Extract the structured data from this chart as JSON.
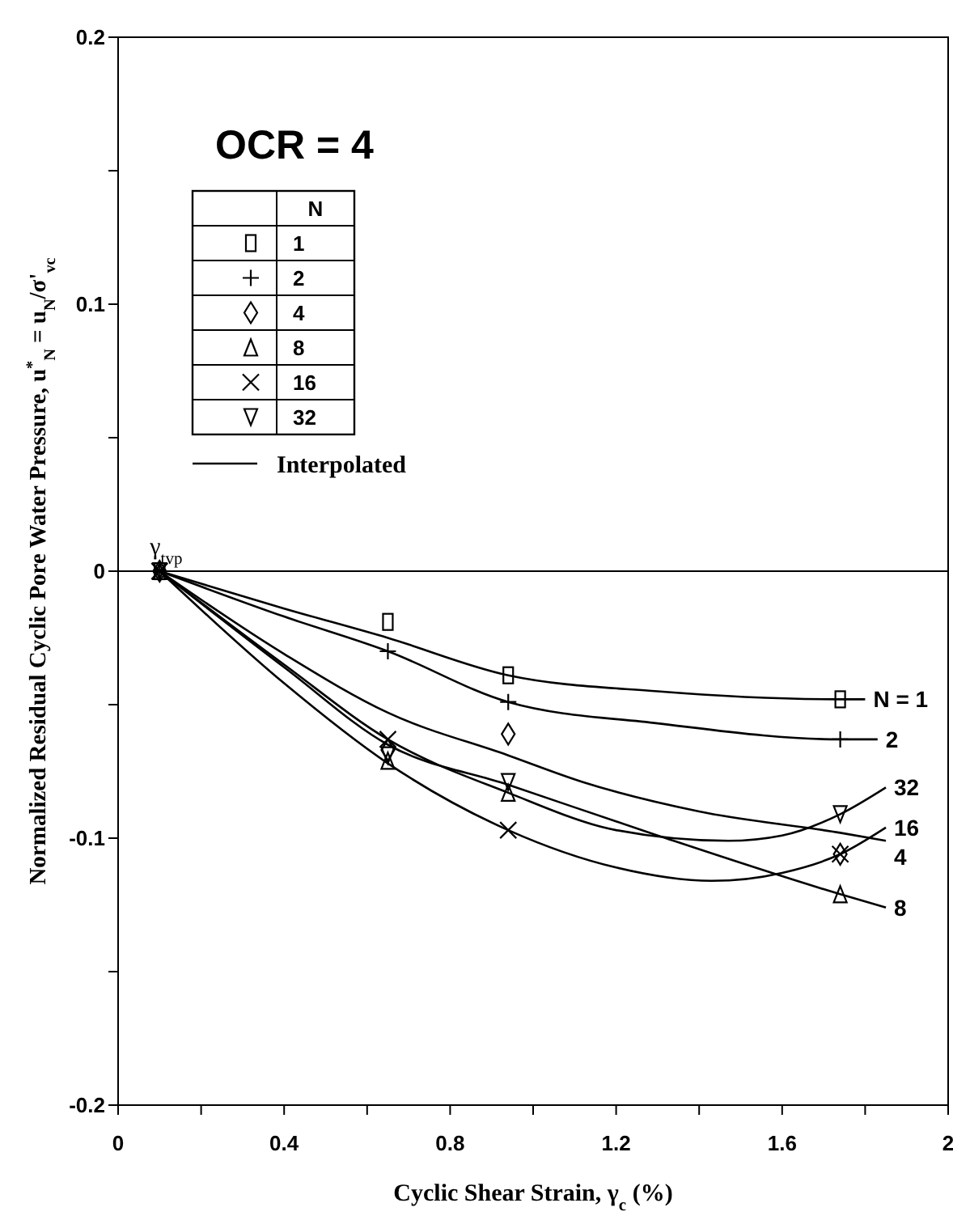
{
  "chart_data": {
    "type": "scatter",
    "xlabel": "Cyclic Shear Strain, γ$_{c}$ (%)",
    "ylabel": "Normalized Residual Cyclic Pore Water Pressure, u$^{*}$$_{N}$ = u$_{N}$/σ'$_{vc}$",
    "legend_title": "N",
    "legend": "top left",
    "grid": false,
    "xlim": [
      0,
      2
    ],
    "ylim": [
      -0.2,
      0.2
    ],
    "xticks": [
      0,
      {
        "value": 0.2,
        "label": null
      },
      0.4,
      {
        "value": 0.6,
        "label": null
      },
      0.8,
      {
        "value": 1.0,
        "label": null
      },
      1.2,
      {
        "value": 1.4,
        "label": null
      },
      1.6,
      {
        "value": 1.8,
        "label": null
      },
      2
    ],
    "yticks": [
      -0.2,
      {
        "value": -0.15,
        "label": null
      },
      -0.1,
      {
        "value": -0.05,
        "label": null
      },
      0,
      {
        "value": 0.05,
        "label": null
      },
      0.1,
      {
        "value": 0.15,
        "label": null
      },
      0.2
    ],
    "ref_lines": [
      {
        "axis": "y",
        "value": 0,
        "color": "#000000"
      }
    ],
    "annotations": [
      "OCR = 4",
      {
        "text": "γ$_{tvp}$",
        "x": 0.1,
        "y": 0
      },
      {
        "text": "N = 1",
        "x": 1.8,
        "y": -0.048
      },
      {
        "text": "2",
        "x": 1.83,
        "y": -0.063
      },
      {
        "text": "32",
        "x": 1.85,
        "y": -0.081
      },
      {
        "text": "16",
        "x": 1.85,
        "y": -0.096
      },
      {
        "text": "4",
        "x": 1.85,
        "y": -0.101
      },
      {
        "text": "8",
        "x": 1.85,
        "y": -0.126
      }
    ],
    "series": [
      {
        "type": "scatter",
        "name": "1",
        "color": "#000000",
        "marker": "square",
        "x": [
          0.1,
          0.65,
          0.94,
          1.74
        ],
        "values": [
          0,
          -0.019,
          -0.039,
          -0.048
        ]
      },
      {
        "type": "scatter",
        "name": "2",
        "color": "#000000",
        "marker": "cross",
        "x": [
          0.1,
          0.65,
          0.94,
          1.74
        ],
        "values": [
          0,
          -0.03,
          -0.049,
          -0.063
        ]
      },
      {
        "type": "scatter",
        "name": "4",
        "color": "#000000",
        "marker": "diamond",
        "x": [
          0.1,
          0.65,
          0.94,
          1.74
        ],
        "values": [
          0,
          -0.067,
          -0.061,
          -0.106
        ]
      },
      {
        "type": "scatter",
        "name": "8",
        "color": "#000000",
        "marker": "triangle",
        "x": [
          0.1,
          0.65,
          0.94,
          1.74
        ],
        "values": [
          0,
          -0.071,
          -0.083,
          -0.121
        ]
      },
      {
        "type": "scatter",
        "name": "16",
        "color": "#000000",
        "marker": "x",
        "x": [
          0.1,
          0.65,
          0.94,
          1.74
        ],
        "values": [
          0,
          -0.063,
          -0.097,
          -0.106
        ]
      },
      {
        "type": "scatter",
        "name": "32",
        "color": "#000000",
        "marker": "triangle-down",
        "x": [
          0.1,
          0.65,
          0.94,
          1.74
        ],
        "values": [
          0,
          -0.069,
          -0.079,
          -0.091
        ]
      },
      {
        "type": "line",
        "name": "Interpolated",
        "color": "#000000",
        "line_style": "solid",
        "x": [
          0.1,
          0.4,
          0.65,
          0.94,
          1.3,
          1.74,
          1.8
        ],
        "values": [
          0,
          -0.014,
          -0.025,
          -0.039,
          -0.045,
          -0.048,
          -0.048
        ]
      },
      {
        "type": "line",
        "color": "#000000",
        "line_style": "solid",
        "x": [
          0.1,
          0.4,
          0.65,
          0.94,
          1.3,
          1.74,
          1.83
        ],
        "values": [
          0,
          -0.017,
          -0.03,
          -0.049,
          -0.057,
          -0.063,
          -0.063
        ]
      },
      {
        "type": "line",
        "color": "#000000",
        "line_style": "solid",
        "x": [
          0.1,
          0.4,
          0.65,
          0.94,
          1.12,
          1.4,
          1.74,
          1.85
        ],
        "values": [
          0,
          -0.031,
          -0.053,
          -0.069,
          -0.079,
          -0.09,
          -0.098,
          -0.101
        ]
      },
      {
        "type": "line",
        "color": "#000000",
        "line_style": "solid",
        "x": [
          0.1,
          0.4,
          0.65,
          0.94,
          1.3,
          1.74,
          1.85
        ],
        "values": [
          0,
          -0.036,
          -0.065,
          -0.08,
          -0.099,
          -0.121,
          -0.126
        ]
      },
      {
        "type": "line",
        "color": "#000000",
        "line_style": "solid",
        "x": [
          0.1,
          0.4,
          0.65,
          0.94,
          1.2,
          1.43,
          1.6,
          1.74,
          1.85
        ],
        "values": [
          0,
          -0.042,
          -0.072,
          -0.097,
          -0.111,
          -0.116,
          -0.113,
          -0.106,
          -0.096
        ]
      },
      {
        "type": "line",
        "color": "#000000",
        "line_style": "solid",
        "x": [
          0.1,
          0.4,
          0.65,
          0.94,
          1.2,
          1.47,
          1.6,
          1.74,
          1.85
        ],
        "values": [
          0,
          -0.035,
          -0.063,
          -0.083,
          -0.097,
          -0.101,
          -0.099,
          -0.091,
          -0.081
        ]
      }
    ]
  }
}
